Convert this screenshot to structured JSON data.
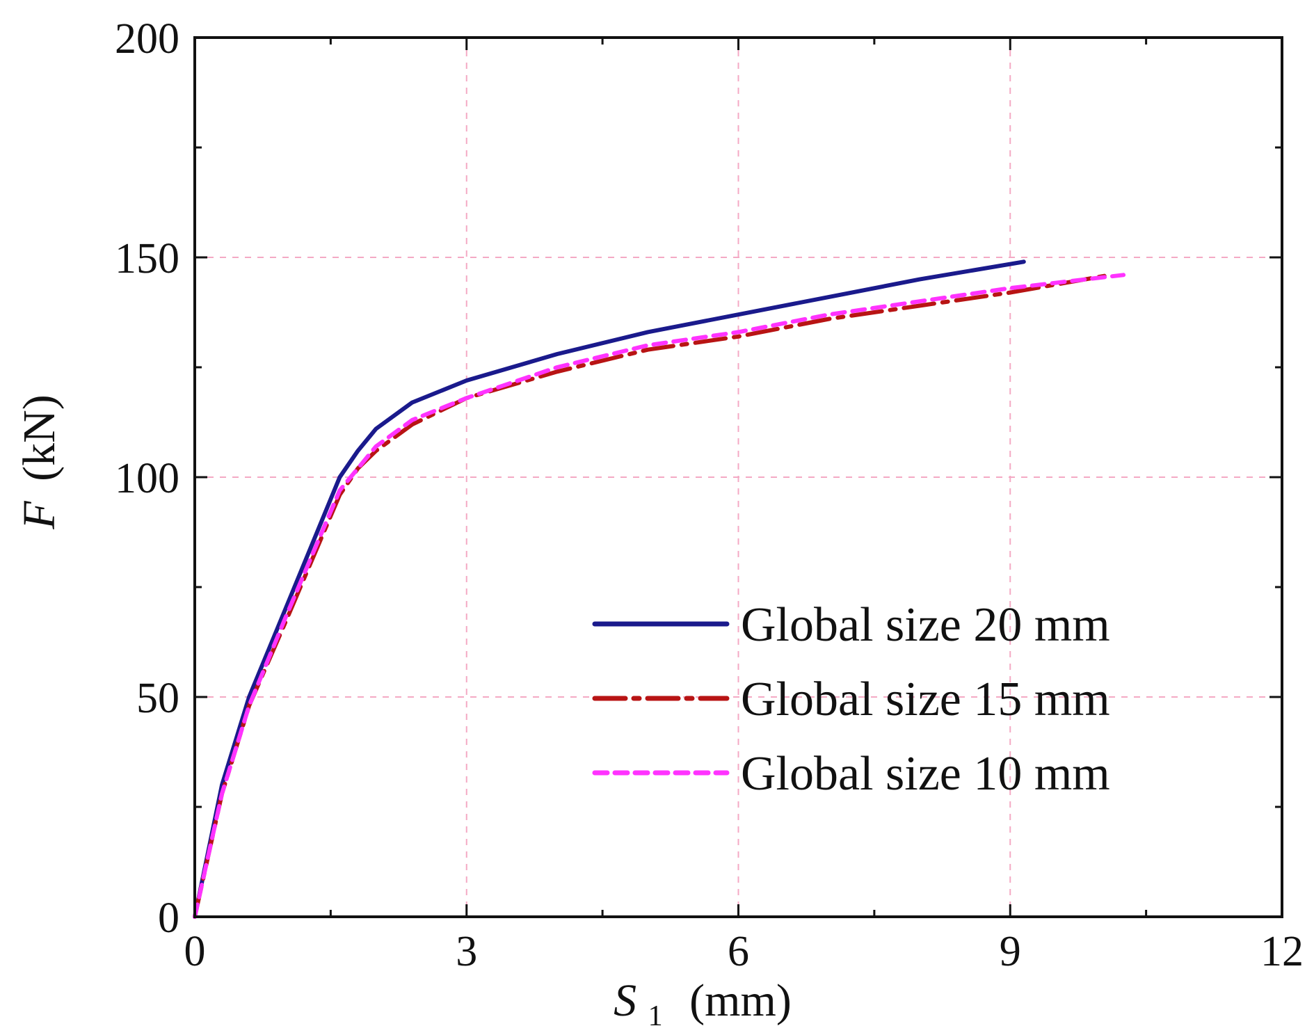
{
  "chart_data": {
    "type": "line",
    "title": "",
    "xlabel": {
      "main": "S",
      "sub": "1",
      "unit": "(mm)"
    },
    "ylabel": {
      "main": "F",
      "unit": "(kN)"
    },
    "xlim": [
      0,
      12
    ],
    "ylim": [
      0,
      200
    ],
    "xticks": [
      0,
      3,
      6,
      9,
      12
    ],
    "yticks": [
      0,
      50,
      100,
      150,
      200
    ],
    "x_minor_step": 1.5,
    "y_minor_step": 25,
    "grid": true,
    "legend_position": "lower-right",
    "series": [
      {
        "name": "Global size 20 mm",
        "color": "#1a1a8c",
        "style": "solid",
        "points": [
          [
            0,
            0
          ],
          [
            0.3,
            30
          ],
          [
            0.6,
            50
          ],
          [
            1.0,
            70
          ],
          [
            1.6,
            100
          ],
          [
            1.8,
            106
          ],
          [
            2.0,
            111
          ],
          [
            2.4,
            117
          ],
          [
            3.0,
            122
          ],
          [
            4.0,
            128
          ],
          [
            5.0,
            133
          ],
          [
            6.0,
            137
          ],
          [
            7.0,
            141
          ],
          [
            8.0,
            145
          ],
          [
            9.15,
            149
          ]
        ]
      },
      {
        "name": "Global size 15 mm",
        "color": "#b81414",
        "style": "dashdot",
        "points": [
          [
            0,
            0
          ],
          [
            0.3,
            28
          ],
          [
            0.6,
            48
          ],
          [
            1.0,
            67
          ],
          [
            1.6,
            96
          ],
          [
            1.8,
            102
          ],
          [
            2.0,
            106
          ],
          [
            2.4,
            112
          ],
          [
            3.0,
            118
          ],
          [
            4.0,
            124
          ],
          [
            5.0,
            129
          ],
          [
            6.0,
            132
          ],
          [
            7.0,
            136
          ],
          [
            8.0,
            139
          ],
          [
            9.0,
            142
          ],
          [
            10.1,
            146
          ]
        ]
      },
      {
        "name": "Global size 10 mm",
        "color": "#ff33ff",
        "style": "dashed",
        "points": [
          [
            0,
            0
          ],
          [
            0.3,
            28
          ],
          [
            0.6,
            48
          ],
          [
            1.0,
            68
          ],
          [
            1.6,
            97
          ],
          [
            1.8,
            102
          ],
          [
            2.0,
            107
          ],
          [
            2.4,
            113
          ],
          [
            3.0,
            118
          ],
          [
            4.0,
            125
          ],
          [
            5.0,
            130
          ],
          [
            6.0,
            133
          ],
          [
            7.0,
            137
          ],
          [
            8.0,
            140
          ],
          [
            9.0,
            143
          ],
          [
            10.25,
            146
          ]
        ]
      }
    ]
  }
}
